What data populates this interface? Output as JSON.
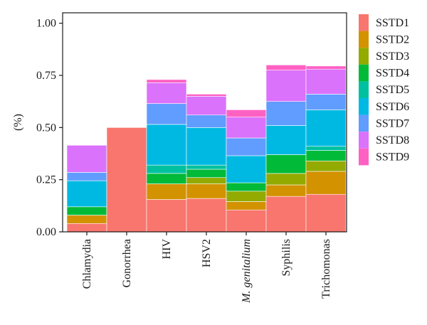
{
  "chart_data": {
    "type": "bar",
    "stacked": true,
    "title": "",
    "xlabel": "",
    "ylabel": "(%)",
    "ylim": [
      0,
      1.05
    ],
    "yticks": [
      0.0,
      0.25,
      0.5,
      0.75,
      1.0
    ],
    "ytick_labels": [
      "0.00",
      "0.25",
      "0.50",
      "0.75",
      "1.00"
    ],
    "grid": false,
    "legend_position": "right",
    "categories": [
      "Chlamydia",
      "Gonorrhea",
      "HIV",
      "HSV2",
      "M. genitalium",
      "Syphilis",
      "Trichomonas"
    ],
    "category_italic": [
      false,
      false,
      false,
      false,
      true,
      false,
      false
    ],
    "series": [
      {
        "name": "SSTD1",
        "color": "#F8766D",
        "values": [
          0.04,
          0.5,
          0.155,
          0.16,
          0.105,
          0.17,
          0.18
        ]
      },
      {
        "name": "SSTD2",
        "color": "#D39200",
        "values": [
          0.04,
          0.0,
          0.075,
          0.07,
          0.04,
          0.055,
          0.11
        ]
      },
      {
        "name": "SSTD3",
        "color": "#93AA00",
        "values": [
          0.0,
          0.0,
          0.0,
          0.03,
          0.05,
          0.055,
          0.05
        ]
      },
      {
        "name": "SSTD4",
        "color": "#00BA38",
        "values": [
          0.04,
          0.0,
          0.05,
          0.04,
          0.04,
          0.09,
          0.05
        ]
      },
      {
        "name": "SSTD5",
        "color": "#00C19F",
        "values": [
          0.0,
          0.0,
          0.04,
          0.02,
          0.0,
          0.0,
          0.02
        ]
      },
      {
        "name": "SSTD6",
        "color": "#00B9E3",
        "values": [
          0.125,
          0.0,
          0.195,
          0.18,
          0.13,
          0.14,
          0.175
        ]
      },
      {
        "name": "SSTD7",
        "color": "#619CFF",
        "values": [
          0.04,
          0.0,
          0.1,
          0.06,
          0.085,
          0.115,
          0.075
        ]
      },
      {
        "name": "SSTD8",
        "color": "#DB72FB",
        "values": [
          0.13,
          0.0,
          0.1,
          0.09,
          0.1,
          0.15,
          0.12
        ]
      },
      {
        "name": "SSTD9",
        "color": "#FF61C3",
        "values": [
          0.0,
          0.0,
          0.015,
          0.01,
          0.035,
          0.025,
          0.015
        ]
      }
    ]
  }
}
